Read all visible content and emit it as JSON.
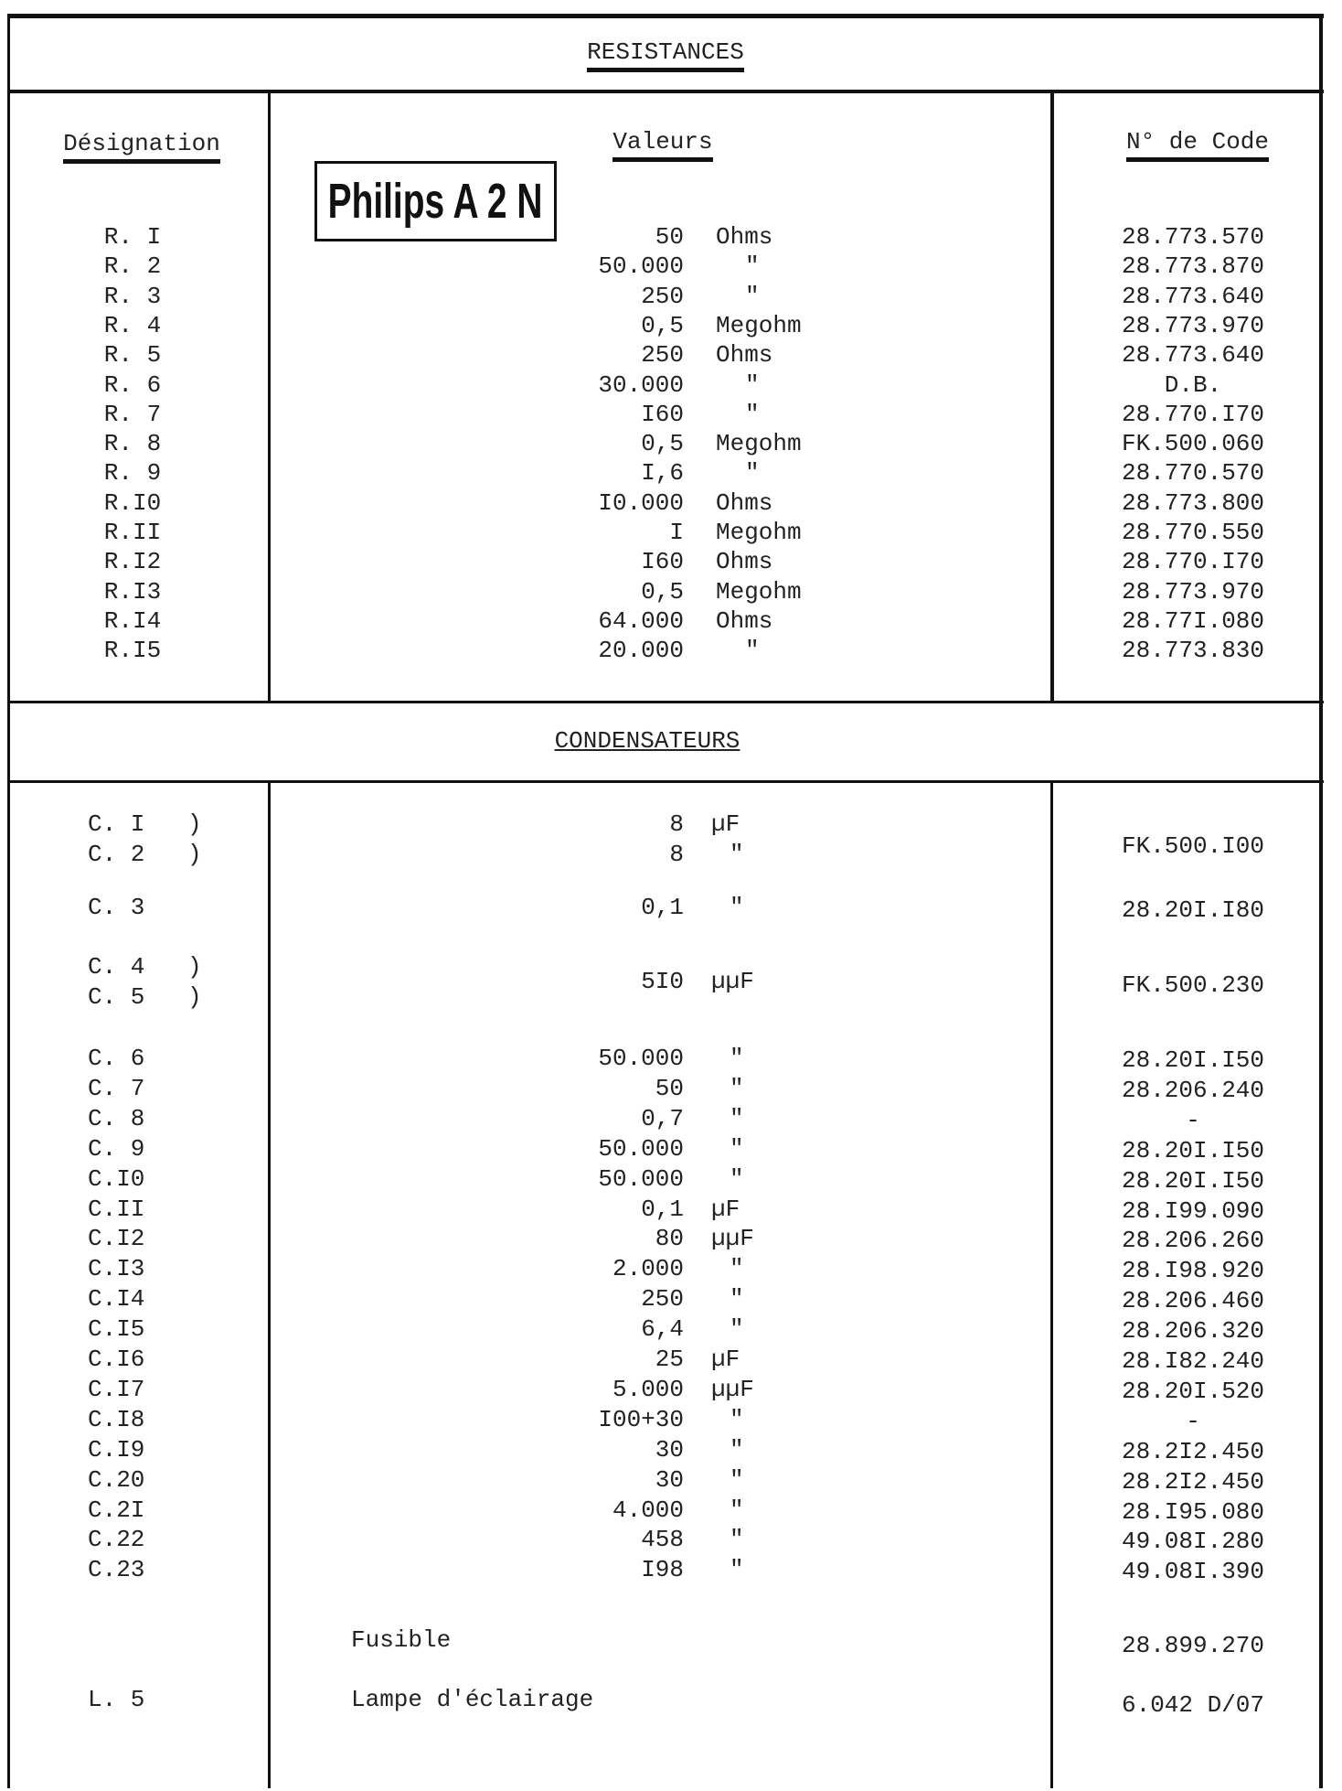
{
  "resistances": {
    "title": "RESISTANCES",
    "headers": {
      "designation": "Désignation",
      "valeurs": "Valeurs",
      "code": "N° de Code"
    },
    "label_box": "Philips A 2 N",
    "rows": [
      {
        "des": "R. I",
        "val": "50",
        "unit": "Ohms",
        "code": "28.773.570"
      },
      {
        "des": "R. 2",
        "val": "50.000",
        "unit": "\"",
        "code": "28.773.870"
      },
      {
        "des": "R. 3",
        "val": "250",
        "unit": "\"",
        "code": "28.773.640"
      },
      {
        "des": "R. 4",
        "val": "0,5",
        "unit": "Megohm",
        "code": "28.773.970"
      },
      {
        "des": "R. 5",
        "val": "250",
        "unit": "Ohms",
        "code": "28.773.640"
      },
      {
        "des": "R. 6",
        "val": "30.000",
        "unit": "\"",
        "code": "D.B."
      },
      {
        "des": "R. 7",
        "val": "I60",
        "unit": "\"",
        "code": "28.770.I70"
      },
      {
        "des": "R. 8",
        "val": "0,5",
        "unit": "Megohm",
        "code": "FK.500.060"
      },
      {
        "des": "R. 9",
        "val": "I,6",
        "unit": "\"",
        "code": "28.770.570"
      },
      {
        "des": "R.I0",
        "val": "I0.000",
        "unit": "Ohms",
        "code": "28.773.800"
      },
      {
        "des": "R.II",
        "val": "I",
        "unit": "Megohm",
        "code": "28.770.550"
      },
      {
        "des": "R.I2",
        "val": "I60",
        "unit": "Ohms",
        "code": "28.770.I70"
      },
      {
        "des": "R.I3",
        "val": "0,5",
        "unit": "Megohm",
        "code": "28.773.970"
      },
      {
        "des": "R.I4",
        "val": "64.000",
        "unit": "Ohms",
        "code": "28.77I.080"
      },
      {
        "des": "R.I5",
        "val": "20.000",
        "unit": "\"",
        "code": "28.773.830"
      }
    ]
  },
  "condensateurs": {
    "title": "CONDENSATEURS",
    "rows": [
      {
        "des": "C. I",
        "brace": ")",
        "val": "8",
        "unit": "µF",
        "code": "FK.500.I00"
      },
      {
        "des": "C. 2",
        "brace": ")",
        "val": "8",
        "unit": "\""
      },
      {
        "des": "C. 3",
        "val": "0,1",
        "unit": "\"",
        "code": "28.20I.I80"
      },
      {
        "des": "C. 4",
        "brace": ")",
        "val": "5I0",
        "unit": "µµF",
        "code": "FK.500.230"
      },
      {
        "des": "C. 5",
        "brace": ")"
      },
      {
        "des": "C. 6",
        "val": "50.000",
        "unit": "\"",
        "code": "28.20I.I50"
      },
      {
        "des": "C. 7",
        "val": "50",
        "unit": "\"",
        "code": "28.206.240"
      },
      {
        "des": "C. 8",
        "val": "0,7",
        "unit": "\"",
        "code": "-"
      },
      {
        "des": "C. 9",
        "val": "50.000",
        "unit": "\"",
        "code": "28.20I.I50"
      },
      {
        "des": "C.I0",
        "val": "50.000",
        "unit": "\"",
        "code": "28.20I.I50"
      },
      {
        "des": "C.II",
        "val": "0,1",
        "unit": "µF",
        "code": "28.I99.090"
      },
      {
        "des": "C.I2",
        "val": "80",
        "unit": "µµF",
        "code": "28.206.260"
      },
      {
        "des": "C.I3",
        "val": "2.000",
        "unit": "\"",
        "code": "28.I98.920"
      },
      {
        "des": "C.I4",
        "val": "250",
        "unit": "\"",
        "code": "28.206.460"
      },
      {
        "des": "C.I5",
        "val": "6,4",
        "unit": "\"",
        "code": "28.206.320"
      },
      {
        "des": "C.I6",
        "val": "25",
        "unit": "µF",
        "code": "28.I82.240"
      },
      {
        "des": "C.I7",
        "val": "5.000",
        "unit": "µµF",
        "code": "28.20I.520"
      },
      {
        "des": "C.I8",
        "val": "I00+30",
        "unit": "\"",
        "code": "-"
      },
      {
        "des": "C.I9",
        "val": "30",
        "unit": "\"",
        "code": "28.2I2.450"
      },
      {
        "des": "C.20",
        "val": "30",
        "unit": "\"",
        "code": "28.2I2.450"
      },
      {
        "des": "C.2I",
        "val": "4.000",
        "unit": "\"",
        "code": "28.I95.080"
      },
      {
        "des": "C.22",
        "val": "458",
        "unit": "\"",
        "code": "49.08I.280"
      },
      {
        "des": "C.23",
        "val": "I98",
        "unit": "\"",
        "code": "49.08I.390"
      }
    ]
  },
  "others": [
    {
      "des": "",
      "label": "Fusible",
      "code": "28.899.270"
    },
    {
      "des": "L. 5",
      "label": "Lampe d'éclairage",
      "code": "6.042 D/07"
    }
  ]
}
